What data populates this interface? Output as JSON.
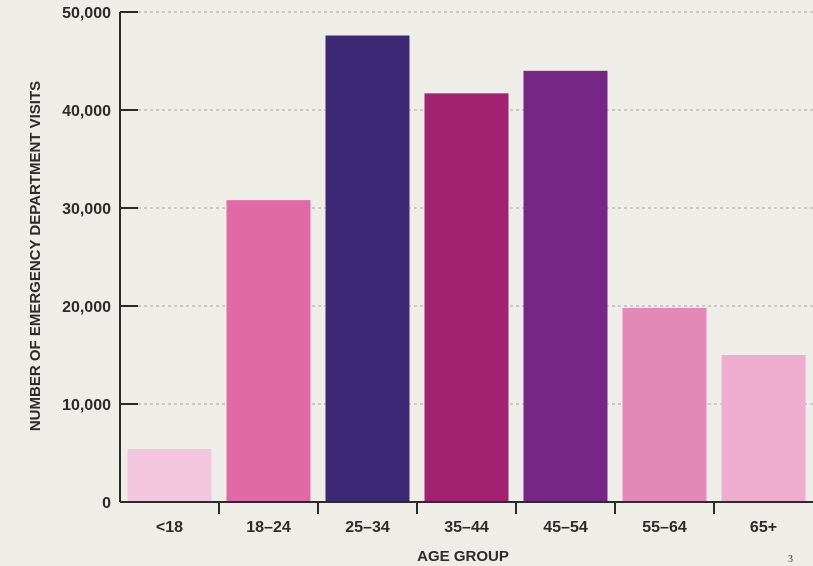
{
  "chart_data": {
    "type": "bar",
    "title": "",
    "xlabel": "AGE GROUP",
    "ylabel": "NUMBER OF EMERGENCY DEPARTMENT VISITS",
    "categories": [
      "<18",
      "18–24",
      "25–34",
      "35–44",
      "45–54",
      "55–64",
      "65+"
    ],
    "values": [
      5400,
      30800,
      47600,
      41700,
      44000,
      19800,
      15000
    ],
    "colors": [
      "#f2c6dc",
      "#e06aa5",
      "#3d2876",
      "#a3226f",
      "#742783",
      "#e488b7",
      "#eeaccf"
    ],
    "ylim": [
      0,
      50000
    ],
    "yticks": [
      0,
      10000,
      20000,
      30000,
      40000,
      50000
    ],
    "ytick_labels": [
      "0",
      "10,000",
      "20,000",
      "30,000",
      "40,000",
      "50,000"
    ],
    "grid": true,
    "legend": "none"
  },
  "page": {
    "number": "3"
  }
}
